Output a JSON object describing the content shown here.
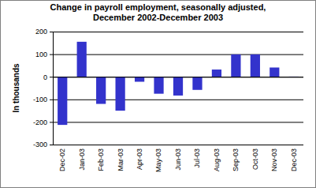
{
  "chart_data": {
    "type": "bar",
    "title": "Change in payroll employment, seasonally adjusted, December 2002-December 2003",
    "y_label": "In thousands",
    "categories": [
      "Dec-02",
      "Jan-03",
      "Feb-03",
      "Mar-03",
      "Apr-03",
      "May-03",
      "Jun-03",
      "Jul-03",
      "Aug-03",
      "Sep-03",
      "Oct-03",
      "Nov-03",
      "Dec-03"
    ],
    "values": [
      -213,
      155,
      -120,
      -150,
      -22,
      -75,
      -83,
      -58,
      32,
      99,
      99,
      41,
      1
    ],
    "color": "#3333cc",
    "ylim": [
      -300,
      200
    ],
    "yticks": [
      -300,
      -200,
      -100,
      0,
      100,
      200
    ],
    "grid": true
  }
}
